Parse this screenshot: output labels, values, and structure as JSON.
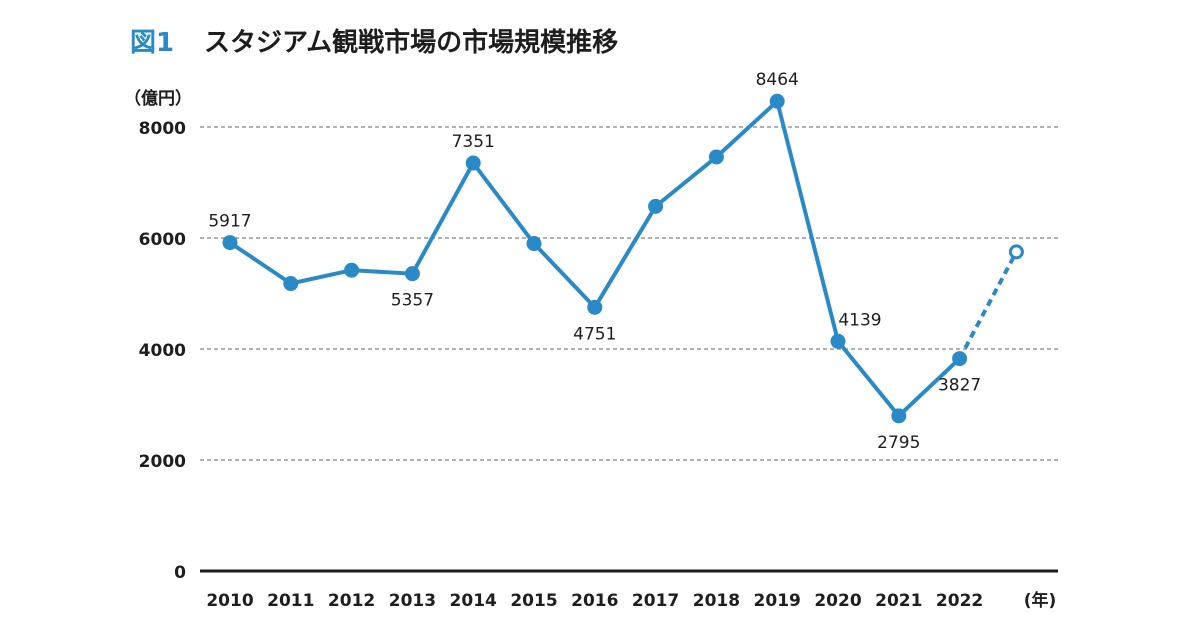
{
  "figure": {
    "number": "図1",
    "title": "スタジアム観戦市場の市場規模推移",
    "y_unit": "（億円）",
    "x_unit": "(年)"
  },
  "chart_data": {
    "type": "line",
    "title": "スタジアム観戦市場の市場規模推移",
    "xlabel": "(年)",
    "ylabel": "（億円）",
    "categories": [
      "2010",
      "2011",
      "2012",
      "2013",
      "2014",
      "2015",
      "2016",
      "2017",
      "2018",
      "2019",
      "2020",
      "2021",
      "2022",
      ""
    ],
    "series": [
      {
        "values": [
          5917,
          5180,
          5420,
          5357,
          7351,
          5900,
          4751,
          6570,
          7460,
          8464,
          4139,
          2795,
          3827,
          null
        ]
      }
    ],
    "forecast": {
      "from_index": 12,
      "to_index": 13,
      "value": 5750,
      "style": "dashed line, hollow marker"
    },
    "data_labels": [
      {
        "index": 0,
        "text": "5917",
        "position": "above"
      },
      {
        "index": 3,
        "text": "5357",
        "position": "below"
      },
      {
        "index": 4,
        "text": "7351",
        "position": "above"
      },
      {
        "index": 6,
        "text": "4751",
        "position": "below"
      },
      {
        "index": 9,
        "text": "8464",
        "position": "above"
      },
      {
        "index": 10,
        "text": "4139",
        "position": "right-above"
      },
      {
        "index": 11,
        "text": "2795",
        "position": "below"
      },
      {
        "index": 12,
        "text": "3827",
        "position": "below"
      }
    ],
    "y_ticks": [
      0,
      2000,
      4000,
      6000,
      8000
    ],
    "ylim": [
      0,
      8000
    ],
    "grid": "horizontal dashed",
    "legend": "none",
    "colors": {
      "line": "#2a8ac8",
      "axis": "#1e1e1e",
      "grid": "#666666",
      "text": "#1e1e1e",
      "title_accent": "#2a8ac8",
      "background": "#ffffff"
    }
  }
}
